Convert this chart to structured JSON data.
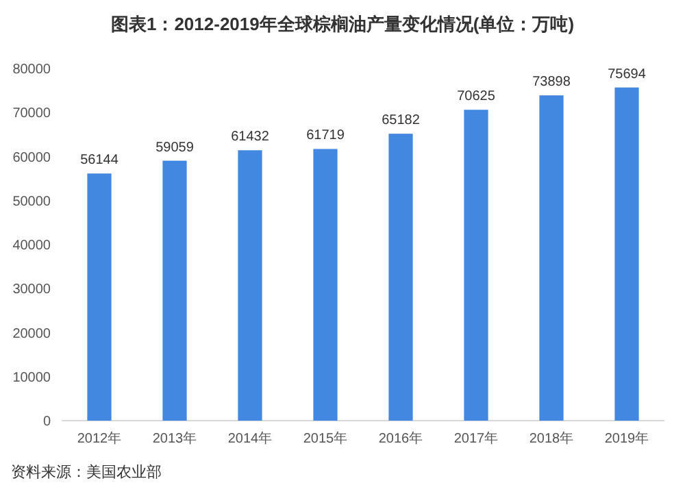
{
  "chart_data": {
    "type": "bar",
    "title": "图表1：2012-2019年全球棕榈油产量变化情况(单位：万吨)",
    "categories": [
      "2012年",
      "2013年",
      "2014年",
      "2015年",
      "2016年",
      "2017年",
      "2018年",
      "2019年"
    ],
    "values": [
      56144,
      59059,
      61432,
      61719,
      65182,
      70625,
      73898,
      75694
    ],
    "color": "#4287e0",
    "ylim": [
      0,
      80000
    ],
    "yticks": [
      0,
      10000,
      20000,
      30000,
      40000,
      50000,
      60000,
      70000,
      80000
    ],
    "data_labels": true,
    "annotations": [
      "资料来源：美国农业部"
    ]
  }
}
